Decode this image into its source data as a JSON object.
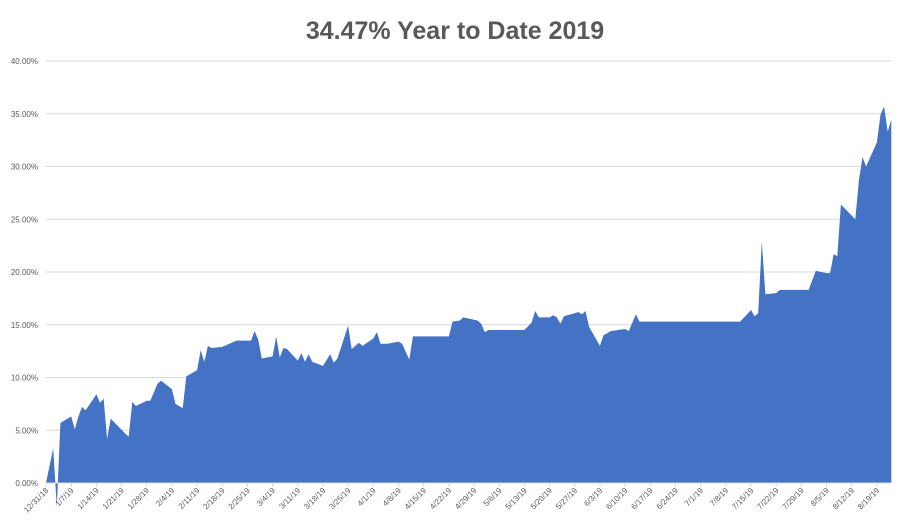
{
  "chart_data": {
    "type": "area",
    "title": "34.47% Year to Date 2019",
    "xlabel": "",
    "ylabel": "",
    "ylim": [
      0,
      40
    ],
    "y_ticks": [
      "0.00%",
      "5.00%",
      "10.00%",
      "15.00%",
      "20.00%",
      "25.00%",
      "30.00%",
      "35.00%",
      "40.00%"
    ],
    "x_ticks": [
      "12/31/18",
      "1/7/19",
      "1/14/19",
      "1/21/19",
      "1/28/19",
      "2/4/19",
      "2/11/19",
      "2/18/19",
      "2/25/19",
      "3/4/19",
      "3/11/19",
      "3/18/19",
      "3/25/19",
      "4/1/19",
      "4/8/19",
      "4/15/19",
      "4/22/19",
      "4/29/19",
      "5/6/19",
      "5/13/19",
      "5/20/19",
      "5/27/19",
      "6/3/19",
      "6/10/19",
      "6/17/19",
      "6/24/19",
      "7/1/19",
      "7/8/19",
      "7/15/19",
      "7/22/19",
      "7/29/19",
      "8/5/19",
      "8/12/19",
      "8/19/19"
    ],
    "grid": true,
    "legend": "none",
    "color": "#4472C4",
    "y_unit": "percent",
    "points": [
      [
        "12/31/18",
        0
      ],
      [
        "1/2/19",
        3.3
      ],
      [
        "1/3/19",
        -2.3
      ],
      [
        "1/4/19",
        5.7
      ],
      [
        "1/7/19",
        6.3
      ],
      [
        "1/8/19",
        5.1
      ],
      [
        "1/9/19",
        6.3
      ],
      [
        "1/10/19",
        7.2
      ],
      [
        "1/11/19",
        6.9
      ],
      [
        "1/14/19",
        8.4
      ],
      [
        "1/15/19",
        7.6
      ],
      [
        "1/16/19",
        8.0
      ],
      [
        "1/17/19",
        4.2
      ],
      [
        "1/18/19",
        6.1
      ],
      [
        "1/22/19",
        4.7
      ],
      [
        "1/23/19",
        4.4
      ],
      [
        "1/24/19",
        7.7
      ],
      [
        "1/25/19",
        7.3
      ],
      [
        "1/28/19",
        7.8
      ],
      [
        "1/29/19",
        7.8
      ],
      [
        "1/31/19",
        9.4
      ],
      [
        "2/1/19",
        9.7
      ],
      [
        "2/4/19",
        8.9
      ],
      [
        "2/5/19",
        7.5
      ],
      [
        "2/7/19",
        7.1
      ],
      [
        "2/8/19",
        10.1
      ],
      [
        "2/11/19",
        10.7
      ],
      [
        "2/12/19",
        12.6
      ],
      [
        "2/13/19",
        11.5
      ],
      [
        "2/14/19",
        13.0
      ],
      [
        "2/15/19",
        12.8
      ],
      [
        "2/18/19",
        12.9
      ],
      [
        "2/20/19",
        13.2
      ],
      [
        "2/22/19",
        13.5
      ],
      [
        "2/26/19",
        13.5
      ],
      [
        "2/27/19",
        14.4
      ],
      [
        "2/28/19",
        13.6
      ],
      [
        "3/1/19",
        11.8
      ],
      [
        "3/4/19",
        12.0
      ],
      [
        "3/5/19",
        13.9
      ],
      [
        "3/6/19",
        11.9
      ],
      [
        "3/7/19",
        12.8
      ],
      [
        "3/8/19",
        12.7
      ],
      [
        "3/11/19",
        11.6
      ],
      [
        "3/12/19",
        12.3
      ],
      [
        "3/13/19",
        11.5
      ],
      [
        "3/14/19",
        12.2
      ],
      [
        "3/15/19",
        11.5
      ],
      [
        "3/18/19",
        11.1
      ],
      [
        "3/20/19",
        12.2
      ],
      [
        "3/21/19",
        11.4
      ],
      [
        "3/22/19",
        11.8
      ],
      [
        "3/25/19",
        14.9
      ],
      [
        "3/26/19",
        12.7
      ],
      [
        "3/28/19",
        13.3
      ],
      [
        "3/29/19",
        13.0
      ],
      [
        "4/1/19",
        13.7
      ],
      [
        "4/2/19",
        14.3
      ],
      [
        "4/3/19",
        13.2
      ],
      [
        "4/5/19",
        13.2
      ],
      [
        "4/8/19",
        13.4
      ],
      [
        "4/9/19",
        13.2
      ],
      [
        "4/11/19",
        11.7
      ],
      [
        "4/12/19",
        13.9
      ],
      [
        "4/22/19",
        13.9
      ],
      [
        "4/23/19",
        15.3
      ],
      [
        "4/25/19",
        15.4
      ],
      [
        "4/26/19",
        15.7
      ],
      [
        "4/30/19",
        15.4
      ],
      [
        "5/1/19",
        15.1
      ],
      [
        "5/2/19",
        14.3
      ],
      [
        "5/3/19",
        14.5
      ],
      [
        "5/13/19",
        14.5
      ],
      [
        "5/15/19",
        15.2
      ],
      [
        "5/16/19",
        16.3
      ],
      [
        "5/17/19",
        15.7
      ],
      [
        "5/20/19",
        15.7
      ],
      [
        "5/21/19",
        15.9
      ],
      [
        "5/22/19",
        15.7
      ],
      [
        "5/23/19",
        15.1
      ],
      [
        "5/24/19",
        15.8
      ],
      [
        "5/28/19",
        16.2
      ],
      [
        "5/29/19",
        16.0
      ],
      [
        "5/30/19",
        16.3
      ],
      [
        "5/31/19",
        14.8
      ],
      [
        "6/3/19",
        13.0
      ],
      [
        "6/4/19",
        14.0
      ],
      [
        "6/5/19",
        14.2
      ],
      [
        "6/6/19",
        14.4
      ],
      [
        "6/10/19",
        14.6
      ],
      [
        "6/11/19",
        14.4
      ],
      [
        "6/13/19",
        16.0
      ],
      [
        "6/14/19",
        15.3
      ],
      [
        "7/12/19",
        15.3
      ],
      [
        "7/15/19",
        16.4
      ],
      [
        "7/16/19",
        15.8
      ],
      [
        "7/17/19",
        16.1
      ],
      [
        "7/18/19",
        22.9
      ],
      [
        "7/19/19",
        17.9
      ],
      [
        "7/22/19",
        18.0
      ],
      [
        "7/23/19",
        18.3
      ],
      [
        "7/31/19",
        18.3
      ],
      [
        "8/2/19",
        20.1
      ],
      [
        "8/5/19",
        19.9
      ],
      [
        "8/6/19",
        19.9
      ],
      [
        "8/7/19",
        21.7
      ],
      [
        "8/8/19",
        21.5
      ],
      [
        "8/9/19",
        26.4
      ],
      [
        "8/13/19",
        25.0
      ],
      [
        "8/14/19",
        28.7
      ],
      [
        "8/15/19",
        30.9
      ],
      [
        "8/16/19",
        30.0
      ],
      [
        "8/19/19",
        32.3
      ],
      [
        "8/20/19",
        34.9
      ],
      [
        "8/21/19",
        35.7
      ],
      [
        "8/22/19",
        33.3
      ],
      [
        "8/23/19",
        34.47
      ]
    ]
  }
}
